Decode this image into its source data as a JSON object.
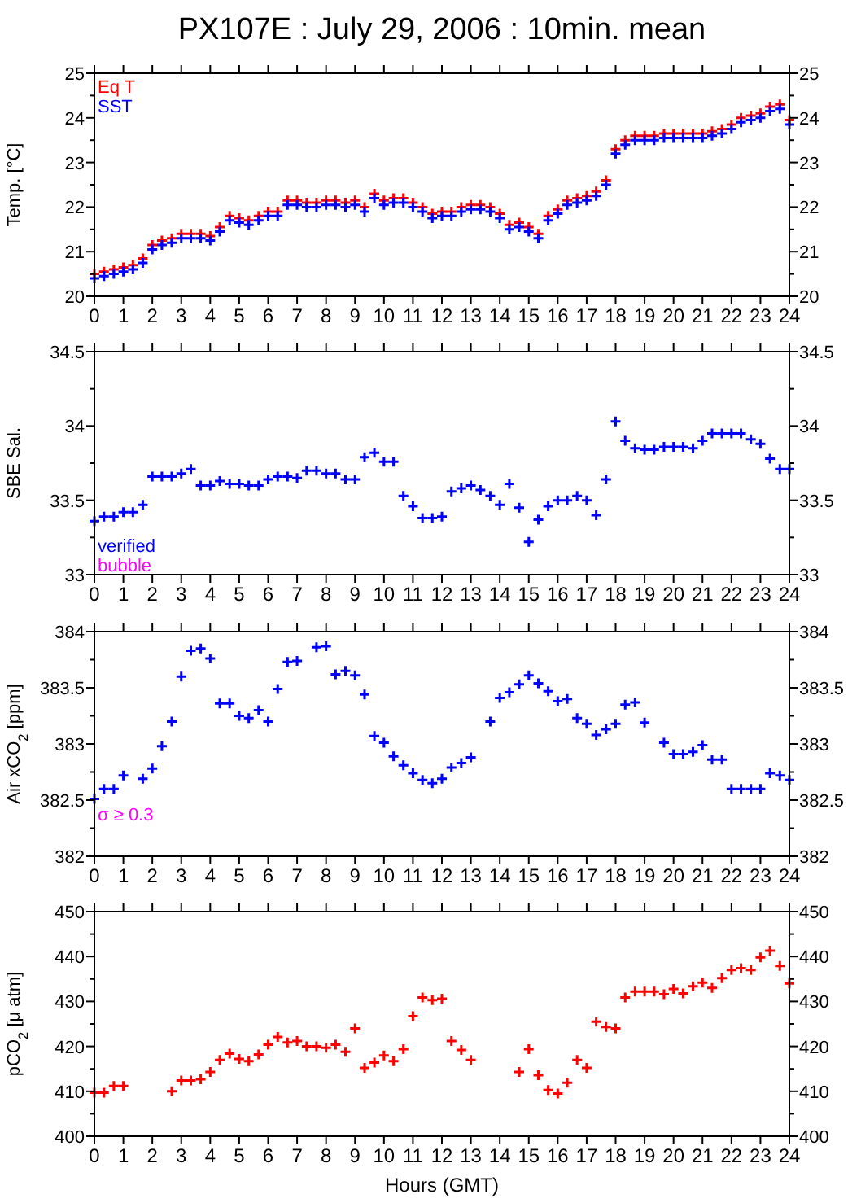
{
  "chart_data": [
    {
      "type": "scatter",
      "title": "PX107E : July 29, 2006 : 10min. mean",
      "ylabel": "Temp. [°C]",
      "marker": "cross",
      "legend": "top left",
      "grid": false,
      "x": [
        0,
        0.33,
        0.67,
        1,
        1.33,
        1.67,
        2,
        2.33,
        2.67,
        3,
        3.33,
        3.67,
        4,
        4.33,
        4.67,
        5,
        5.33,
        5.67,
        6,
        6.33,
        6.67,
        7,
        7.33,
        7.67,
        8,
        8.33,
        8.67,
        9,
        9.33,
        9.67,
        10,
        10.33,
        10.67,
        11,
        11.33,
        11.67,
        12,
        12.33,
        12.67,
        13,
        13.33,
        13.67,
        14,
        14.33,
        14.67,
        15,
        15.33,
        15.67,
        16,
        16.33,
        16.67,
        17,
        17.33,
        17.67,
        18,
        18.33,
        18.67,
        19,
        19.33,
        19.67,
        20,
        20.33,
        20.67,
        21,
        21.33,
        21.67,
        22,
        22.33,
        22.67,
        23,
        23.33,
        23.67,
        24
      ],
      "series": [
        {
          "name": "Eq T",
          "color": "#ff0000",
          "values": [
            20.5,
            20.55,
            20.6,
            20.65,
            20.7,
            20.85,
            21.15,
            21.25,
            21.3,
            21.4,
            21.4,
            21.4,
            21.35,
            21.55,
            21.8,
            21.75,
            21.7,
            21.8,
            21.9,
            21.9,
            22.15,
            22.15,
            22.1,
            22.1,
            22.15,
            22.15,
            22.1,
            22.15,
            22.0,
            22.3,
            22.15,
            22.2,
            22.2,
            22.1,
            22.0,
            21.85,
            21.9,
            21.9,
            22.0,
            22.05,
            22.05,
            22.0,
            21.85,
            21.6,
            21.65,
            21.55,
            21.4,
            21.8,
            21.95,
            22.15,
            22.2,
            22.25,
            22.35,
            22.6,
            23.3,
            23.5,
            23.6,
            23.6,
            23.6,
            23.65,
            23.65,
            23.65,
            23.65,
            23.65,
            23.7,
            23.75,
            23.85,
            24.0,
            24.05,
            24.1,
            24.25,
            24.3,
            23.95
          ]
        },
        {
          "name": "SST",
          "color": "#0000ff",
          "values": [
            20.4,
            20.45,
            20.5,
            20.55,
            20.6,
            20.75,
            21.05,
            21.15,
            21.2,
            21.3,
            21.3,
            21.3,
            21.25,
            21.45,
            21.7,
            21.65,
            21.6,
            21.7,
            21.8,
            21.8,
            22.05,
            22.05,
            22.0,
            22.0,
            22.05,
            22.05,
            22.0,
            22.05,
            21.9,
            22.2,
            22.05,
            22.1,
            22.1,
            22.0,
            21.9,
            21.75,
            21.8,
            21.8,
            21.9,
            21.95,
            21.95,
            21.9,
            21.75,
            21.5,
            21.55,
            21.45,
            21.3,
            21.7,
            21.85,
            22.05,
            22.1,
            22.15,
            22.25,
            22.5,
            23.2,
            23.4,
            23.5,
            23.5,
            23.5,
            23.55,
            23.55,
            23.55,
            23.55,
            23.55,
            23.6,
            23.65,
            23.75,
            23.9,
            23.95,
            24.0,
            24.15,
            24.2,
            23.85
          ]
        }
      ],
      "xlim": [
        0,
        24
      ],
      "xticks": [
        0,
        1,
        2,
        3,
        4,
        5,
        6,
        7,
        8,
        9,
        10,
        11,
        12,
        13,
        14,
        15,
        16,
        17,
        18,
        19,
        20,
        21,
        22,
        23,
        24
      ],
      "ylim": [
        20,
        25
      ],
      "yticks": [
        20,
        {
          "value": 20.5,
          "label": null
        },
        21,
        {
          "value": 21.5,
          "label": null
        },
        22,
        {
          "value": 22.5,
          "label": null
        },
        23,
        {
          "value": 23.5,
          "label": null
        },
        24,
        {
          "value": 24.5,
          "label": null
        },
        25
      ],
      "y2lim": [
        20,
        25
      ],
      "y2ticks": [
        20,
        {
          "value": 20.5,
          "label": null
        },
        21,
        {
          "value": 21.5,
          "label": null
        },
        22,
        {
          "value": 22.5,
          "label": null
        },
        23,
        {
          "value": 23.5,
          "label": null
        },
        24,
        {
          "value": 24.5,
          "label": null
        },
        25
      ]
    },
    {
      "type": "scatter",
      "ylabel": "SBE Sal.",
      "marker": "cross",
      "legend": "bottom left",
      "grid": false,
      "annotations": [
        "bubble"
      ],
      "x": [
        0,
        0.33,
        0.67,
        1,
        1.33,
        1.67,
        2,
        2.33,
        2.67,
        3,
        3.33,
        3.67,
        4,
        4.33,
        4.67,
        5,
        5.33,
        5.67,
        6,
        6.33,
        6.67,
        7,
        7.33,
        7.67,
        8,
        8.33,
        8.67,
        9,
        9.33,
        9.67,
        10,
        10.33,
        10.67,
        11,
        11.33,
        11.67,
        12,
        12.33,
        12.67,
        13,
        13.33,
        13.67,
        14,
        14.33,
        14.67,
        15,
        15.33,
        15.67,
        16,
        16.33,
        16.67,
        17,
        17.33,
        17.67,
        18,
        18.33,
        18.67,
        19,
        19.33,
        19.67,
        20,
        20.33,
        20.67,
        21,
        21.33,
        21.67,
        22,
        22.33,
        22.67,
        23,
        23.33,
        23.67,
        24
      ],
      "series": [
        {
          "name": "verified",
          "color": "#0000ff",
          "values": [
            33.36,
            33.39,
            33.39,
            33.42,
            33.42,
            33.47,
            33.66,
            33.66,
            33.66,
            33.68,
            33.71,
            33.6,
            33.6,
            33.63,
            33.61,
            33.61,
            33.6,
            33.6,
            33.64,
            33.66,
            33.66,
            33.65,
            33.7,
            33.7,
            33.68,
            33.68,
            33.64,
            33.64,
            33.79,
            33.82,
            33.76,
            33.76,
            33.53,
            33.46,
            33.38,
            33.38,
            33.39,
            33.56,
            33.58,
            33.6,
            33.57,
            33.53,
            33.47,
            33.61,
            33.45,
            33.22,
            33.37,
            33.46,
            33.5,
            33.5,
            33.53,
            33.5,
            33.4,
            33.64,
            34.03,
            33.9,
            33.85,
            33.84,
            33.84,
            33.86,
            33.86,
            33.86,
            33.85,
            33.9,
            33.95,
            33.95,
            33.95,
            33.95,
            33.91,
            33.88,
            33.78,
            33.71,
            33.71
          ]
        }
      ],
      "xlim": [
        0,
        24
      ],
      "xticks": [
        0,
        1,
        2,
        3,
        4,
        5,
        6,
        7,
        8,
        9,
        10,
        11,
        12,
        13,
        14,
        15,
        16,
        17,
        18,
        19,
        20,
        21,
        22,
        23,
        24
      ],
      "ylim": [
        33,
        34.5
      ],
      "yticks": [
        33,
        {
          "value": 33.25,
          "label": null
        },
        33.5,
        {
          "value": 33.75,
          "label": null
        },
        34,
        {
          "value": 34.25,
          "label": null
        },
        34.5
      ],
      "y2lim": [
        33,
        34.5
      ],
      "y2ticks": [
        33,
        {
          "value": 33.25,
          "label": null
        },
        33.5,
        {
          "value": 33.75,
          "label": null
        },
        34,
        {
          "value": 34.25,
          "label": null
        },
        34.5
      ]
    },
    {
      "type": "scatter",
      "ylabel": "Air xCO$_{2}$ [ppm]",
      "marker": "cross",
      "grid": false,
      "annotations": [
        "σ ≥ 0.3"
      ],
      "x": [
        0,
        0.33,
        0.67,
        1,
        1.67,
        2,
        2.33,
        2.67,
        3,
        3.33,
        3.67,
        4,
        4.33,
        4.67,
        5,
        5.33,
        5.67,
        6,
        6.33,
        6.67,
        7,
        7.67,
        8,
        8.33,
        8.67,
        9,
        9.33,
        9.67,
        10,
        10.33,
        10.67,
        11,
        11.33,
        11.67,
        12,
        12.33,
        12.67,
        13,
        13.67,
        14,
        14.33,
        14.67,
        15,
        15.33,
        15.67,
        16,
        16.33,
        16.67,
        17,
        17.33,
        17.67,
        18,
        18.33,
        18.67,
        19,
        19.67,
        20,
        20.33,
        20.67,
        21,
        21.33,
        21.67,
        22,
        22.33,
        22.67,
        23,
        23.33,
        23.67,
        24
      ],
      "series": [
        {
          "color": "#0000ff",
          "values": [
            382.51,
            382.6,
            382.6,
            382.72,
            382.69,
            382.78,
            382.98,
            383.2,
            383.6,
            383.83,
            383.85,
            383.76,
            383.36,
            383.36,
            383.25,
            383.23,
            383.3,
            383.2,
            383.49,
            383.73,
            383.74,
            383.86,
            383.87,
            383.62,
            383.65,
            383.61,
            383.44,
            383.07,
            383.01,
            382.89,
            382.81,
            382.74,
            382.68,
            382.65,
            382.69,
            382.79,
            382.83,
            382.88,
            383.2,
            383.41,
            383.46,
            383.53,
            383.61,
            383.54,
            383.47,
            383.38,
            383.4,
            383.23,
            383.18,
            383.08,
            383.13,
            383.18,
            383.35,
            383.37,
            383.19,
            383.01,
            382.91,
            382.91,
            382.93,
            382.99,
            382.86,
            382.86,
            382.6,
            382.6,
            382.6,
            382.6,
            382.74,
            382.72,
            382.68
          ]
        }
      ],
      "xlim": [
        0,
        24
      ],
      "xticks": [
        0,
        1,
        2,
        3,
        4,
        5,
        6,
        7,
        8,
        9,
        10,
        11,
        12,
        13,
        14,
        15,
        16,
        17,
        18,
        19,
        20,
        21,
        22,
        23,
        24
      ],
      "ylim": [
        382,
        384
      ],
      "yticks": [
        382,
        {
          "value": 382.25,
          "label": null
        },
        382.5,
        {
          "value": 382.75,
          "label": null
        },
        383,
        {
          "value": 383.25,
          "label": null
        },
        383.5,
        {
          "value": 383.75,
          "label": null
        },
        384
      ],
      "y2lim": [
        382,
        384
      ],
      "y2ticks": [
        382,
        {
          "value": 382.25,
          "label": null
        },
        382.5,
        {
          "value": 382.75,
          "label": null
        },
        383,
        {
          "value": 383.25,
          "label": null
        },
        383.5,
        {
          "value": 383.75,
          "label": null
        },
        384
      ]
    },
    {
      "type": "scatter",
      "ylabel": "pCO$_{2}$ [μ atm]",
      "xlabel": "Hours (GMT)",
      "marker": "cross",
      "grid": false,
      "x": [
        0,
        0.33,
        0.67,
        1,
        2.67,
        3,
        3.33,
        3.67,
        4,
        4.33,
        4.67,
        5,
        5.33,
        5.67,
        6,
        6.33,
        6.67,
        7,
        7.33,
        7.67,
        8,
        8.33,
        8.67,
        9,
        9.33,
        9.67,
        10,
        10.33,
        10.67,
        11,
        11.33,
        11.67,
        12,
        12.33,
        12.67,
        13,
        14.67,
        15,
        15.33,
        15.67,
        16,
        16.33,
        16.67,
        17,
        17.33,
        17.67,
        18,
        18.33,
        18.67,
        19,
        19.33,
        19.67,
        20,
        20.33,
        20.67,
        21,
        21.33,
        21.67,
        22,
        22.33,
        22.67,
        23,
        23.33,
        23.67,
        24
      ],
      "series": [
        {
          "color": "#ff0000",
          "values": [
            409.7,
            409.7,
            411.2,
            411.2,
            410,
            412.4,
            412.4,
            412.7,
            414.3,
            417,
            418.4,
            417.2,
            416.7,
            418.2,
            420.4,
            422.1,
            420.9,
            421.2,
            420,
            420,
            419.7,
            420.4,
            418.8,
            424,
            415.2,
            416.4,
            418,
            416.7,
            419.4,
            426.7,
            430.9,
            430.3,
            430.6,
            421.2,
            419.2,
            417,
            414.3,
            419.4,
            413.6,
            410.3,
            409.5,
            411.9,
            417,
            415.2,
            425.5,
            424.3,
            424,
            430.9,
            432.2,
            432.2,
            432.2,
            431.6,
            432.8,
            431.8,
            433.4,
            434.2,
            433,
            435.2,
            437,
            437.4,
            437,
            439.8,
            441.3,
            437.9,
            434
          ]
        }
      ],
      "xlim": [
        0,
        24
      ],
      "xticks": [
        0,
        1,
        2,
        3,
        4,
        5,
        6,
        7,
        8,
        9,
        10,
        11,
        12,
        13,
        14,
        15,
        16,
        17,
        18,
        19,
        20,
        21,
        22,
        23,
        24
      ],
      "ylim": [
        400,
        450
      ],
      "yticks": [
        400,
        {
          "value": 405,
          "label": null
        },
        410,
        {
          "value": 415,
          "label": null
        },
        420,
        {
          "value": 425,
          "label": null
        },
        430,
        {
          "value": 435,
          "label": null
        },
        440,
        {
          "value": 445,
          "label": null
        },
        450
      ],
      "y2lim": [
        400,
        450
      ],
      "y2ticks": [
        400,
        {
          "value": 405,
          "label": null
        },
        410,
        {
          "value": 415,
          "label": null
        },
        420,
        {
          "value": 425,
          "label": null
        },
        430,
        {
          "value": 435,
          "label": null
        },
        440,
        {
          "value": 445,
          "label": null
        },
        450
      ]
    }
  ]
}
